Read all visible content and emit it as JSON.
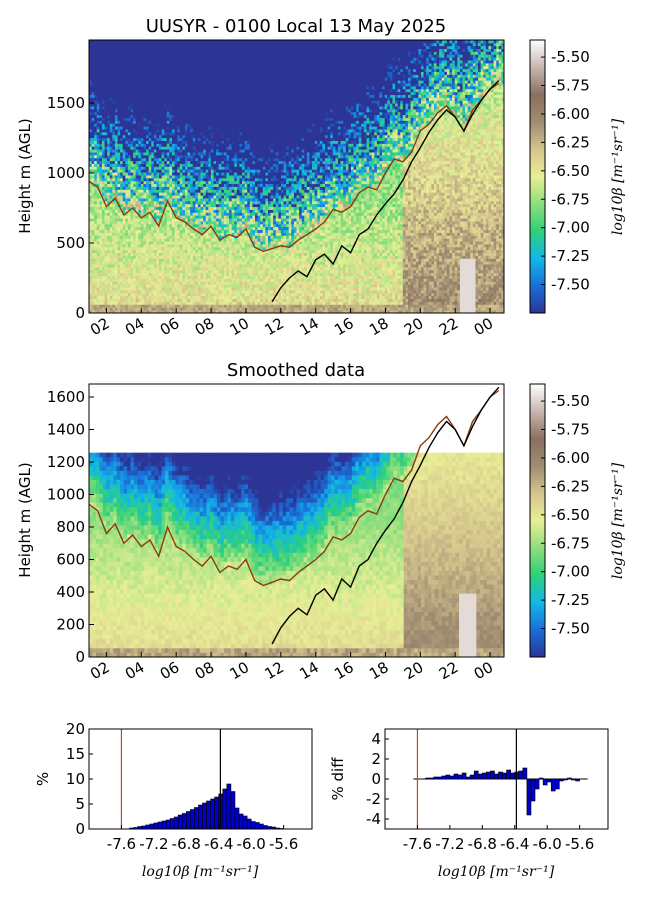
{
  "colormap": [
    "#2c3595",
    "#1a6fd8",
    "#12b8e8",
    "#2ed07a",
    "#8ede7c",
    "#e9ee96",
    "#d4c48c",
    "#a08c72",
    "#8a7060",
    "#c9b6b0",
    "#ffffff"
  ],
  "chart_data": [
    {
      "type": "heatmap",
      "title": "UUSYR - 0100 Local 13 May 2025",
      "ylabel": "Height m (AGL)",
      "x_ticks": [
        "02",
        "04",
        "06",
        "08",
        "10",
        "12",
        "14",
        "16",
        "18",
        "20",
        "22",
        "00"
      ],
      "y_ticks": [
        "0",
        "500",
        "1000",
        "1500"
      ],
      "ylim": [
        0,
        1950
      ],
      "colorbar": {
        "label": "log10β [m⁻¹sr⁻¹]",
        "ticks": [
          "-5.50",
          "-5.75",
          "-6.00",
          "-6.25",
          "-6.50",
          "-6.75",
          "-7.00",
          "-7.25",
          "-7.50"
        ],
        "range": [
          -7.75,
          -5.35
        ]
      },
      "series": [
        {
          "color": "#8b3a0f",
          "x": [
            1.0,
            1.5,
            2.0,
            2.5,
            3.0,
            3.5,
            4.0,
            4.5,
            5.0,
            5.5,
            6.0,
            6.5,
            7.0,
            7.5,
            8.0,
            8.5,
            9.0,
            9.5,
            10.0,
            10.5,
            11.0,
            11.5,
            12.0,
            12.5,
            13.0,
            13.5,
            14.0,
            14.5,
            15.0,
            15.5,
            16.0,
            16.5,
            17.0,
            17.5,
            18.0,
            18.5,
            19.0,
            19.5,
            20.0,
            20.5,
            21.0,
            21.5,
            22.0,
            22.5,
            23.0,
            23.5,
            24.0,
            24.5
          ],
          "values": [
            940,
            900,
            760,
            820,
            700,
            750,
            680,
            720,
            620,
            800,
            680,
            650,
            600,
            560,
            620,
            520,
            560,
            540,
            600,
            470,
            440,
            460,
            480,
            470,
            520,
            560,
            600,
            650,
            740,
            720,
            760,
            860,
            900,
            880,
            1000,
            1100,
            1080,
            1150,
            1300,
            1350,
            1430,
            1480,
            1400,
            1300,
            1450,
            1520,
            1600,
            1640
          ]
        },
        {
          "color": "#000000",
          "x": [
            11.5,
            12.0,
            12.5,
            13.0,
            13.5,
            14.0,
            14.5,
            15.0,
            15.5,
            16.0,
            16.5,
            17.0,
            17.5,
            18.0,
            18.5,
            19.0,
            19.5,
            20.0,
            20.5,
            21.0,
            21.5,
            22.0,
            22.5,
            23.0,
            23.5,
            24.0,
            24.5
          ],
          "values": [
            80,
            180,
            250,
            300,
            260,
            380,
            420,
            350,
            480,
            430,
            560,
            600,
            700,
            780,
            850,
            950,
            1080,
            1180,
            1290,
            1380,
            1450,
            1400,
            1300,
            1420,
            1520,
            1600,
            1660
          ]
        }
      ]
    },
    {
      "type": "heatmap",
      "title": "Smoothed data",
      "ylabel": "Height m (AGL)",
      "x_ticks": [
        "02",
        "04",
        "06",
        "08",
        "10",
        "12",
        "14",
        "16",
        "18",
        "20",
        "22",
        "00"
      ],
      "y_ticks": [
        "0",
        "200",
        "400",
        "600",
        "800",
        "1000",
        "1200",
        "1400",
        "1600"
      ],
      "ylim": [
        0,
        1680
      ],
      "colorbar": {
        "label": "log10β [m⁻¹sr⁻¹]",
        "ticks": [
          "-5.50",
          "-5.75",
          "-6.00",
          "-6.25",
          "-6.50",
          "-6.75",
          "-7.00",
          "-7.25",
          "-7.50"
        ],
        "range": [
          -7.75,
          -5.35
        ]
      },
      "series": [
        {
          "color": "#8b3a0f",
          "x": [
            1.0,
            1.5,
            2.0,
            2.5,
            3.0,
            3.5,
            4.0,
            4.5,
            5.0,
            5.5,
            6.0,
            6.5,
            7.0,
            7.5,
            8.0,
            8.5,
            9.0,
            9.5,
            10.0,
            10.5,
            11.0,
            11.5,
            12.0,
            12.5,
            13.0,
            13.5,
            14.0,
            14.5,
            15.0,
            15.5,
            16.0,
            16.5,
            17.0,
            17.5,
            18.0,
            18.5,
            19.0,
            19.5,
            20.0,
            20.5,
            21.0,
            21.5,
            22.0,
            22.5,
            23.0,
            23.5,
            24.0,
            24.5
          ],
          "values": [
            940,
            900,
            760,
            820,
            700,
            750,
            680,
            720,
            620,
            800,
            680,
            650,
            600,
            560,
            620,
            520,
            560,
            540,
            600,
            470,
            440,
            460,
            480,
            470,
            520,
            560,
            600,
            650,
            740,
            720,
            760,
            860,
            900,
            880,
            1000,
            1100,
            1080,
            1150,
            1300,
            1350,
            1430,
            1480,
            1400,
            1300,
            1450,
            1520,
            1600,
            1640
          ]
        },
        {
          "color": "#000000",
          "x": [
            11.5,
            12.0,
            12.5,
            13.0,
            13.5,
            14.0,
            14.5,
            15.0,
            15.5,
            16.0,
            16.5,
            17.0,
            17.5,
            18.0,
            18.5,
            19.0,
            19.5,
            20.0,
            20.5,
            21.0,
            21.5,
            22.0,
            22.5,
            23.0,
            23.5,
            24.0,
            24.5
          ],
          "values": [
            80,
            180,
            250,
            300,
            260,
            380,
            420,
            350,
            480,
            430,
            560,
            600,
            700,
            780,
            850,
            950,
            1080,
            1180,
            1290,
            1380,
            1450,
            1400,
            1300,
            1420,
            1520,
            1600,
            1660
          ]
        }
      ]
    },
    {
      "type": "bar",
      "xlabel": "log10β [m⁻¹sr⁻¹]",
      "ylabel": "%",
      "x_ticks": [
        "-7.6",
        "-7.2",
        "-6.8",
        "-6.4",
        "-6.0",
        "-5.6"
      ],
      "ylim": [
        0,
        20
      ],
      "y_ticks": [
        "0",
        "5",
        "10",
        "15",
        "20"
      ],
      "bin_start": -7.6,
      "bin_width": 0.05,
      "values": [
        0,
        0,
        0.2,
        0.3,
        0.5,
        0.6,
        0.8,
        1.0,
        1.2,
        1.4,
        1.6,
        1.8,
        2.1,
        2.4,
        2.8,
        3.1,
        3.5,
        3.9,
        4.3,
        4.8,
        5.2,
        5.6,
        6.0,
        6.4,
        7.0,
        8.0,
        9.0,
        7.5,
        4.2,
        3.0,
        2.6,
        2.0,
        1.5,
        1.3,
        1.0,
        0.7,
        0.5,
        0.4,
        0.2,
        0.1
      ],
      "markers": [
        {
          "color": "#b5521b",
          "x": -7.6
        },
        {
          "color": "#000000",
          "x": -6.38
        }
      ]
    },
    {
      "type": "bar",
      "xlabel": "log10β [m⁻¹sr⁻¹]",
      "ylabel": "% diff",
      "x_ticks": [
        "-7.6",
        "-7.2",
        "-6.8",
        "-6.4",
        "-6.0",
        "-5.6"
      ],
      "ylim": [
        -5,
        5
      ],
      "y_ticks": [
        "-4",
        "-2",
        "0",
        "2",
        "4"
      ],
      "bin_start": -7.6,
      "bin_width": 0.05,
      "values": [
        0,
        0,
        0.1,
        0.1,
        0.2,
        0.2,
        0.3,
        0.4,
        0.3,
        0.5,
        0.4,
        0.6,
        0.2,
        0.4,
        0.8,
        0.5,
        0.6,
        0.7,
        0.8,
        0.5,
        0.7,
        0.6,
        0.9,
        0.6,
        0.7,
        0.8,
        1.1,
        -3.6,
        -2.2,
        -1.0,
        0.1,
        -0.6,
        -0.3,
        -1.2,
        -1.0,
        -0.2,
        -0.1,
        0.1,
        -0.1,
        -0.2
      ],
      "markers": [
        {
          "color": "#b5521b",
          "x": -7.6
        },
        {
          "color": "#000000",
          "x": -6.38
        }
      ]
    }
  ]
}
